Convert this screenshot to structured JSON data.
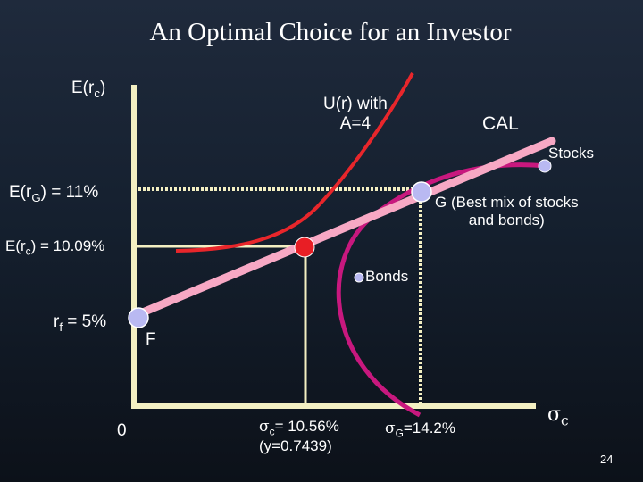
{
  "title": "An Optimal Choice for an Investor",
  "yaxis": {
    "base": "E(r",
    "sub": "c",
    "close": ")"
  },
  "xaxis": {
    "symbol": "σ",
    "sub": "c"
  },
  "utility_label": {
    "line1": "U(r) with",
    "line2": "A=4"
  },
  "cal_label": "CAL",
  "stocks_label": "Stocks",
  "bonds_label": "Bonds",
  "g_label": {
    "line1": "G (Best mix of stocks",
    "line2": "and bonds)"
  },
  "f_label": "F",
  "erg_label": {
    "base": "E(r",
    "sub": "G",
    "rest": ") = 11%"
  },
  "erc_label": {
    "base": "E(r",
    "sub": "c",
    "rest": ") = 10.09%"
  },
  "rf_label": {
    "base": "r",
    "sub": "f",
    "rest": " = 5%"
  },
  "origin_label": "0",
  "sigma_c_label": {
    "symbol": "σ",
    "sub": "c",
    "line1_rest": "= 10.56%",
    "line2": "(y=0.7439)"
  },
  "sigma_g_label": {
    "symbol": "σ",
    "sub": "G",
    "rest": "=14.2%"
  },
  "page_number": "24",
  "colors": {
    "axis": "#f3efc2",
    "cal": "#f7a8c4",
    "utility": "#e8262b",
    "frontier": "#c8187e",
    "dot_fill": "#b9b9f2",
    "optimal_dot": "#e81e25",
    "guide": "#f3efc2"
  },
  "chart_data": {
    "type": "diagram",
    "risk_free_rate": 5,
    "optimal_risky_portfolio": {
      "sigma": 14.2,
      "expected_return": 11
    },
    "optimal_complete_portfolio": {
      "sigma": 10.56,
      "expected_return": 10.09,
      "y": 0.7439
    },
    "risk_aversion_A": 4
  }
}
